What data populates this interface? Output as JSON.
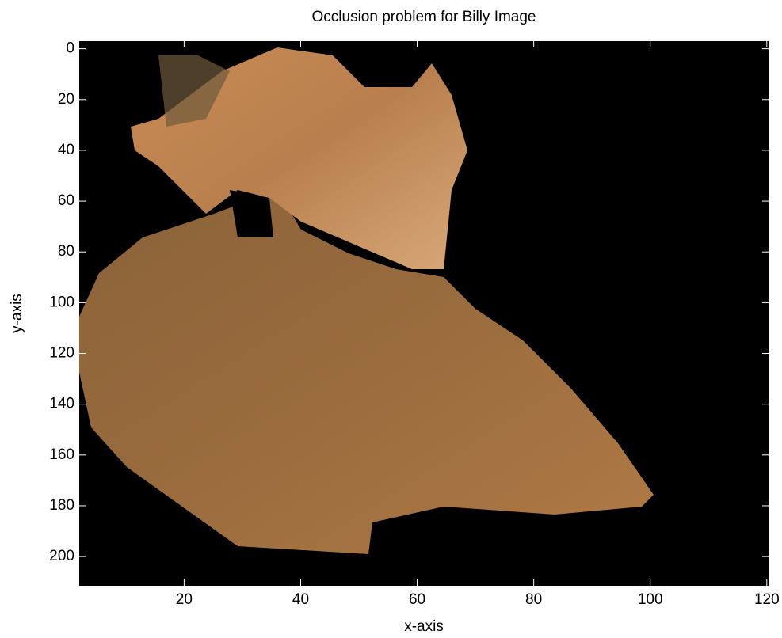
{
  "chart_data": {
    "type": "image",
    "title": "Occlusion problem for Billy Image",
    "x_label": "x-axis",
    "y_label": "y-axis",
    "xlim": [
      2,
      120.3
    ],
    "ylim": [
      -3,
      211.5
    ],
    "y_reversed": true,
    "xticks": [
      20,
      40,
      60,
      80,
      100,
      120
    ],
    "yticks": [
      0,
      20,
      40,
      60,
      80,
      100,
      120,
      140,
      160,
      180,
      200
    ],
    "background": "#000000"
  }
}
